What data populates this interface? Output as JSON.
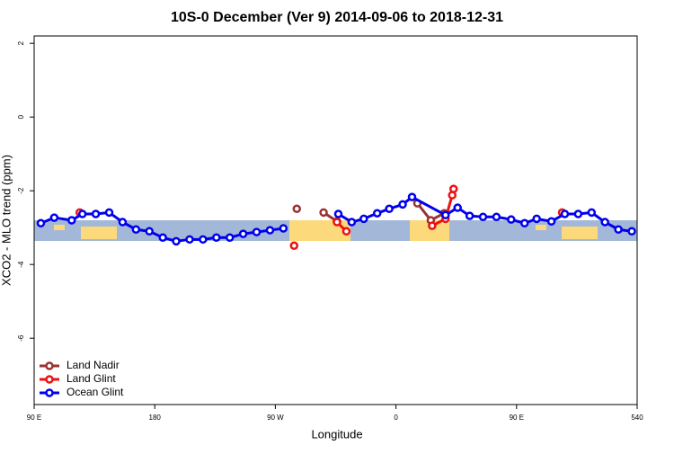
{
  "chart_data": {
    "type": "line",
    "title": "10S-0 December (Ver 9)   2014-09-06 to 2018-12-31",
    "x_label": "Longitude",
    "y_label": "XCO2 - MLO trend (ppm)",
    "xlim": [
      90,
      540
    ],
    "ylim": [
      -7.8,
      2.2
    ],
    "xticks": [
      {
        "value": 90,
        "label": "90 E"
      },
      180,
      {
        "value": 270,
        "label": "90 W"
      },
      {
        "value": 360,
        "label": "0"
      },
      {
        "value": 450,
        "label": "90 E"
      },
      540
    ],
    "yticks": [
      2,
      0,
      -2,
      -4,
      -6
    ],
    "legend": "bottom-left",
    "series": [
      {
        "name": "Land Nadir",
        "color": "#993333",
        "x": [
          286,
          296,
          306,
          316,
          350,
          376,
          386,
          396
        ],
        "values": [
          -2.49,
          null,
          -2.59,
          -2.83,
          null,
          -2.34,
          -2.8,
          -2.61
        ]
      },
      {
        "name": "Land Glint",
        "color": "#ee1111",
        "x": [
          124,
          200,
          284,
          300,
          316,
          323,
          350,
          387,
          397,
          402,
          403,
          440,
          484
        ],
        "values": [
          -2.59,
          null,
          -3.49,
          null,
          -2.85,
          -3.1,
          null,
          -2.95,
          -2.76,
          -2.12,
          -1.95,
          null,
          -2.59
        ]
      },
      {
        "name": "Ocean Glint",
        "color": "#0000ee",
        "x": [
          95,
          105,
          118,
          126,
          136,
          146,
          156,
          166,
          176,
          186,
          196,
          206,
          216,
          226,
          236,
          246,
          256,
          266,
          276,
          296,
          317,
          327,
          336,
          346,
          355,
          365,
          372,
          397,
          406,
          415,
          425,
          435,
          446,
          456,
          465,
          476,
          486,
          496,
          506,
          516,
          526,
          536
        ],
        "values": [
          -2.88,
          -2.73,
          -2.8,
          -2.63,
          -2.63,
          -2.59,
          -2.85,
          -3.05,
          -3.1,
          -3.27,
          -3.37,
          -3.32,
          -3.32,
          -3.27,
          -3.27,
          -3.17,
          -3.12,
          -3.07,
          -3.02,
          null,
          -2.63,
          -2.85,
          -2.76,
          -2.61,
          -2.49,
          -2.37,
          -2.17,
          -2.66,
          -2.46,
          -2.68,
          -2.71,
          -2.71,
          -2.78,
          -2.88,
          -2.76,
          -2.83,
          -2.63,
          -2.63,
          -2.59,
          -2.85,
          -3.05,
          -3.1
        ]
      }
    ]
  }
}
